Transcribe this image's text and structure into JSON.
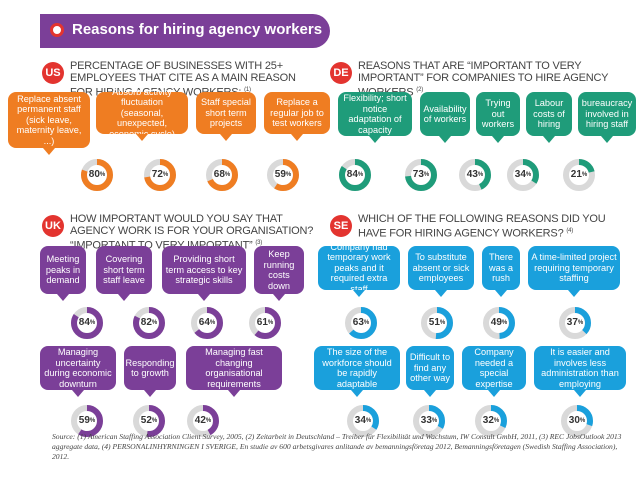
{
  "title": "Reasons for hiring agency workers",
  "colors": {
    "orange": "#ef7d22",
    "green": "#1f9c7a",
    "purple": "#7b3f98",
    "blue": "#1aa0dc",
    "red": "#e3342f",
    "track": "#d9d9d9"
  },
  "sections": {
    "us": {
      "code": "US",
      "heading": "Percentage of businesses with 25+ employees that cite as a main reason for hiring agency workers:",
      "ref": "(1)",
      "items": [
        {
          "label": "Replace absent permanent staff (sick leave, maternity leave, ...)",
          "value": "80",
          "pct": 80
        },
        {
          "label": "Absorb activity fluctuation (seasonal, unexpected, economic cycle)",
          "value": "72",
          "pct": 72
        },
        {
          "label": "Staff special short term projects",
          "value": "68",
          "pct": 68
        },
        {
          "label": "Replace a regular job to test workers",
          "value": "59",
          "pct": 59
        }
      ]
    },
    "de": {
      "code": "DE",
      "heading": "Reasons that are “important to very important” for companies to hire agency workers",
      "ref": "(2)",
      "items": [
        {
          "label": "Flexibility; short notice adaptation of capacity",
          "value": "84",
          "pct": 84
        },
        {
          "label": "Availability of workers",
          "value": "73",
          "pct": 73
        },
        {
          "label": "Trying out workers",
          "value": "43",
          "pct": 43
        },
        {
          "label": "Labour costs of hiring",
          "value": "34",
          "pct": 34
        },
        {
          "label": "bureaucracy involved in hiring staff",
          "value": "21",
          "pct": 21
        }
      ]
    },
    "uk": {
      "code": "UK",
      "heading": "How important would you say that agency work is for your organisation? “Important to very important”",
      "ref": "(3)",
      "items": [
        {
          "label": "Meeting peaks in demand",
          "value": "84",
          "pct": 84
        },
        {
          "label": "Covering short term staff leave",
          "value": "82",
          "pct": 82
        },
        {
          "label": "Providing short term access to key strategic skills",
          "value": "64",
          "pct": 64
        },
        {
          "label": "Keep running costs down",
          "value": "61",
          "pct": 61
        },
        {
          "label": "Managing uncertainty during economic downturn",
          "value": "59",
          "pct": 59
        },
        {
          "label": "Responding to growth",
          "value": "52",
          "pct": 52
        },
        {
          "label": "Managing fast changing organisational requirements",
          "value": "42",
          "pct": 42
        }
      ]
    },
    "se": {
      "code": "SE",
      "heading": "Which of the following reasons did you have for hiring agency workers?",
      "ref": "(4)",
      "items": [
        {
          "label": "Company had temporary work peaks and it required extra staff",
          "value": "63",
          "pct": 63
        },
        {
          "label": "To substitute absent or sick employees",
          "value": "51",
          "pct": 51
        },
        {
          "label": "There was a rush",
          "value": "49",
          "pct": 49
        },
        {
          "label": "A time-limited project requiring temporary staffing",
          "value": "37",
          "pct": 37
        },
        {
          "label": "The size of the workforce should be rapidly adaptable",
          "value": "34",
          "pct": 34
        },
        {
          "label": "Difficult to find any other way",
          "value": "33",
          "pct": 33
        },
        {
          "label": "Company needed a special expertise",
          "value": "32",
          "pct": 32
        },
        {
          "label": "It is easier and involves less administration than employing",
          "value": "30",
          "pct": 30
        }
      ]
    }
  },
  "percent_sign": "%",
  "source": "Source: (1) American Staffing Association Client Survey, 2005, (2) Zeitarbeit in Deutschland – Treiber für Flexibilität und Wachstum, IW Consult GmbH, 2011, (3) REC JobsOutlook 2013 aggregate data, (4) PERSONALINHYRNINGEN I SVERIGE, En studie av 600 arbetsgivares anlitande av bemanningsföretag 2012, Bemanningsföretagen (Swedish Staffing Association), 2012."
}
